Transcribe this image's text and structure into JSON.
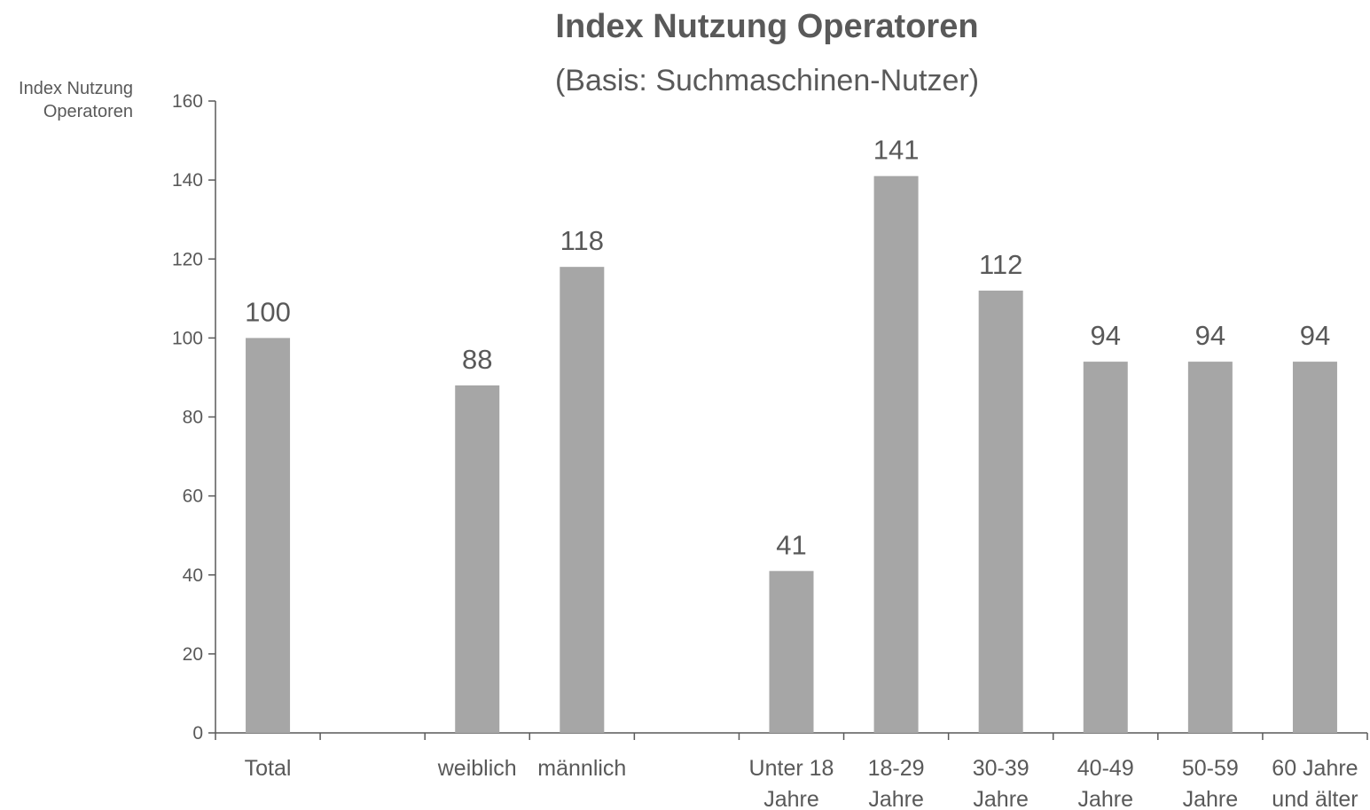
{
  "chart_data": {
    "type": "bar",
    "title": "Index Nutzung Operatoren",
    "subtitle": "(Basis: Suchmaschinen-Nutzer)",
    "y_label": "Index Nutzung\nOperatoren",
    "categories": [
      "Total",
      null,
      "weiblich",
      "männlich",
      null,
      "Unter 18\nJahre",
      "18-29\nJahre",
      "30-39\nJahre",
      "40-49\nJahre",
      "50-59\nJahre",
      "60 Jahre\nund älter"
    ],
    "values": [
      100,
      null,
      88,
      118,
      null,
      41,
      141,
      112,
      94,
      94,
      94
    ],
    "color": "#a6a6a6",
    "ylim": [
      0,
      160
    ],
    "yticks": [
      0,
      20,
      40,
      60,
      80,
      100,
      120,
      140,
      160
    ],
    "grid": false
  }
}
